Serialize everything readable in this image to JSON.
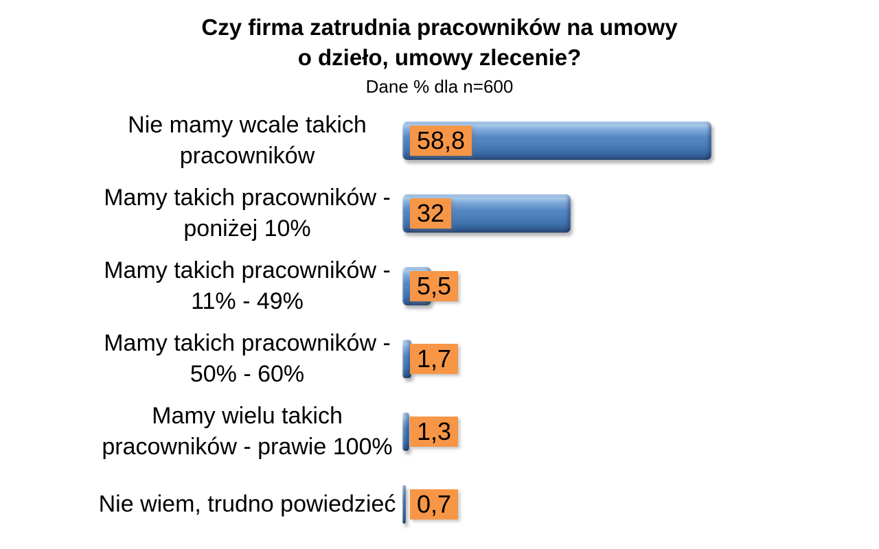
{
  "header": {
    "title_line1": "Czy firma zatrudnia pracowników na umowy",
    "title_line2": "o dzieło, umowy zlecenie?",
    "subtitle": "Dane % dla n=600"
  },
  "colors": {
    "bar_blue_mid": "#4E81BD",
    "bar_blue_highlight": "#A9CBE9",
    "bar_blue_dark": "#2E4D7B",
    "value_label_bg": "#F79646",
    "text": "#000000",
    "background": "#FFFFFF"
  },
  "chart_data": {
    "type": "bar",
    "orientation": "horizontal",
    "title": "Czy firma zatrudnia pracowników na umowy o dzieło, umowy zlecenie?",
    "subtitle": "Dane % dla n=600",
    "sample_n": "n=600",
    "unit": "%",
    "categories": [
      "Nie mamy wcale takich pracowników",
      "Mamy takich pracowników - poniżej 10%",
      "Mamy takich pracowników - 11% - 49%",
      "Mamy takich pracowników - 50% - 60%",
      "Mamy wielu takich pracowników - prawie 100%",
      "Nie wiem, trudno powiedzieć"
    ],
    "categories_display": [
      "Nie mamy wcale takich\npracowników",
      "Mamy takich pracowników -\nponiżej 10%",
      "Mamy takich pracowników -\n11% - 49%",
      "Mamy takich pracowników -\n50% - 60%",
      "Mamy wielu takich\npracowników - prawie 100%",
      "Nie wiem, trudno powiedzieć"
    ],
    "values": [
      58.8,
      32,
      5.5,
      1.7,
      1.3,
      0.7
    ],
    "value_labels": [
      "58,8",
      "32",
      "5,5",
      "1,7",
      "1,3",
      "0,7"
    ],
    "xlim": [
      0,
      60
    ],
    "grid": false,
    "legend": false,
    "bar_color": "#4E81BD",
    "value_label_color": "#F79646"
  }
}
